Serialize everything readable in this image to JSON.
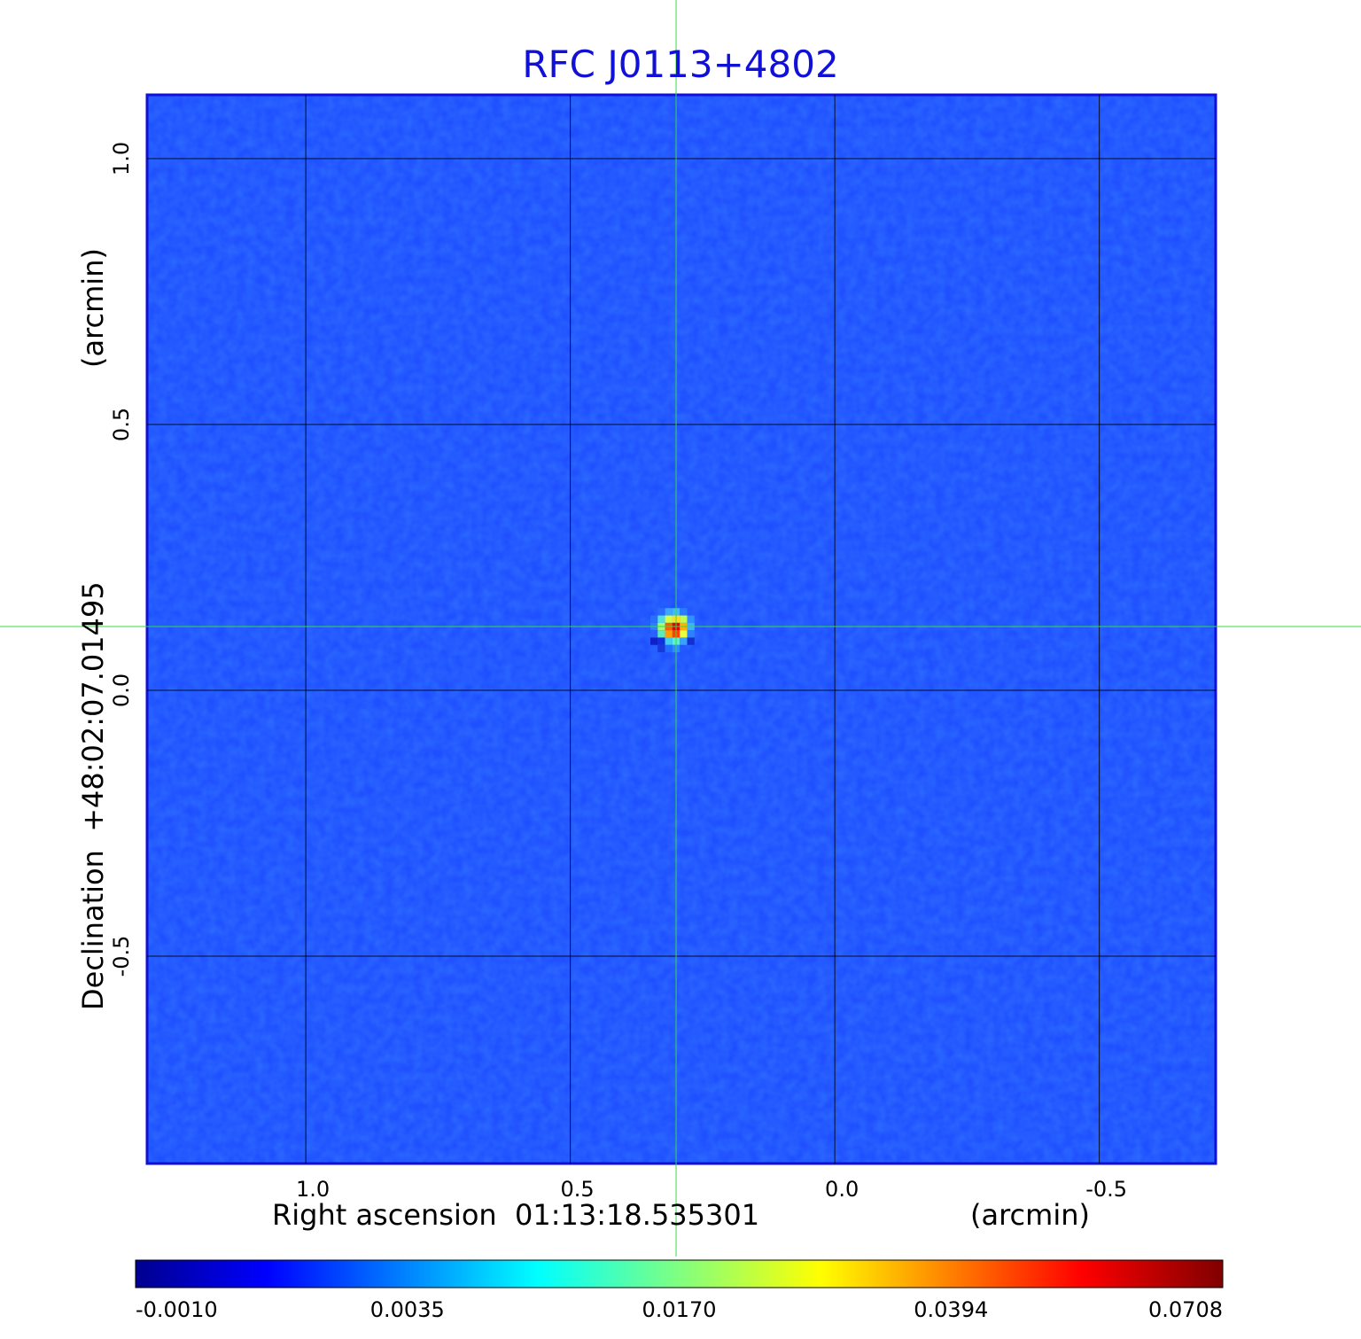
{
  "chart_data": {
    "type": "heatmap",
    "title": "RFC J0113+4802",
    "xlabel": {
      "left": "Right ascension  01:13:18.535301",
      "right": "(arcmin)"
    },
    "ylabel": {
      "left": "Declination  +48:02:07.01495",
      "right": "(arcmin)"
    },
    "x_ticks": [
      "1.0",
      "0.5",
      "0.0",
      "-0.5"
    ],
    "x_tick_values": [
      1.0,
      0.5,
      0.0,
      -0.5
    ],
    "y_ticks": [
      "1.0",
      "0.5",
      "0.0",
      "-0.5"
    ],
    "y_tick_values": [
      1.0,
      0.5,
      0.0,
      -0.5
    ],
    "xlim": [
      1.3,
      -0.72
    ],
    "ylim": [
      -0.89,
      1.12
    ],
    "grid": true,
    "crosshair": {
      "x": 0.3,
      "y": 0.12,
      "color": "#33dd44"
    },
    "source_peak": {
      "x": 0.3,
      "y": 0.12,
      "value": 0.0708
    },
    "colorbar": {
      "ticks": [
        "-0.0010",
        "0.0035",
        "0.0170",
        "0.0394",
        "0.0708"
      ],
      "colormap": "jet"
    },
    "colors": {
      "title": "#1010d8",
      "frame": "#1010d8",
      "background_map": "#1f50ff"
    }
  }
}
